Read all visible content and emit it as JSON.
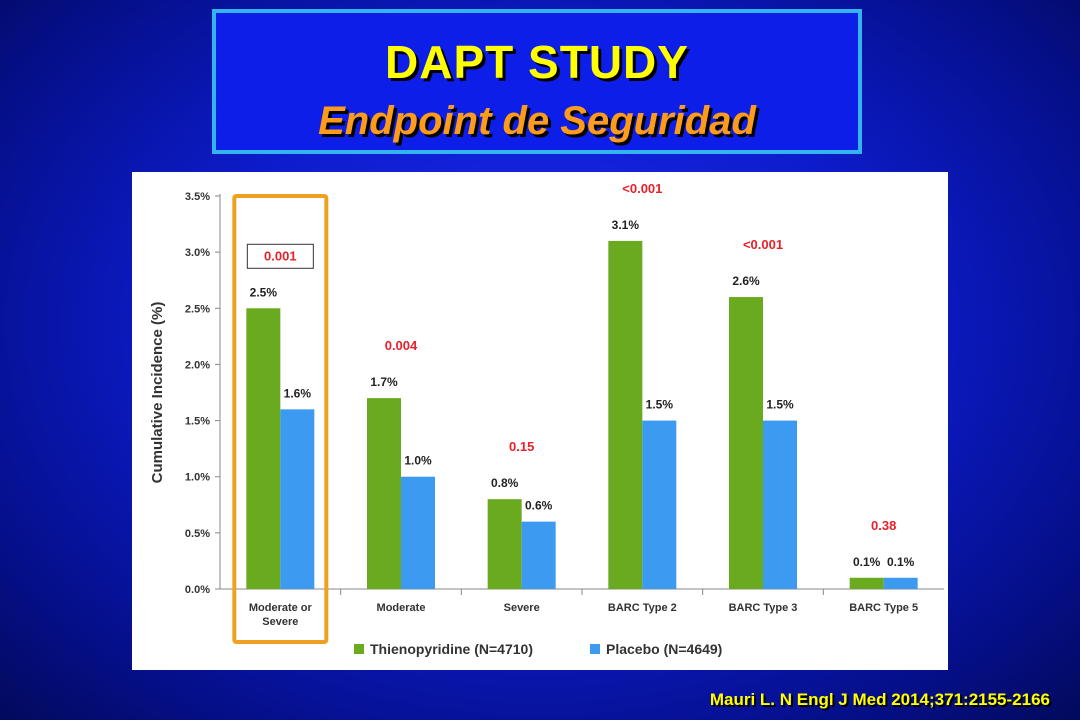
{
  "slide": {
    "title": "DAPT STUDY",
    "subtitle": "Endpoint de Seguridad",
    "citation": "Mauri L. N Engl J Med 2014;371:2155-2166"
  },
  "colors": {
    "thienopyridine": "#6aaa1e",
    "placebo": "#3c9bf0",
    "p_value": "#e8202a",
    "highlight_box": "#f0a020"
  },
  "chart_data": {
    "type": "bar",
    "ylabel": "Cumulative Incidence (%)",
    "ylim": [
      0,
      3.5
    ],
    "yticks": [
      "0.0%",
      "0.5%",
      "1.0%",
      "1.5%",
      "2.0%",
      "2.5%",
      "3.0%",
      "3.5%"
    ],
    "grid": false,
    "legend_position": "bottom",
    "categories": [
      [
        "Moderate or",
        "Severe"
      ],
      [
        "Moderate"
      ],
      [
        "Severe"
      ],
      [
        "BARC Type 2"
      ],
      [
        "BARC Type 3"
      ],
      [
        "BARC Type 5"
      ]
    ],
    "series": [
      {
        "name": "Thienopyridine (N=4710)",
        "values": [
          2.5,
          1.7,
          0.8,
          3.1,
          2.6,
          0.1
        ],
        "labels": [
          "2.5%",
          "1.7%",
          "0.8%",
          "3.1%",
          "2.6%",
          "0.1%"
        ]
      },
      {
        "name": "Placebo (N=4649)",
        "values": [
          1.6,
          1.0,
          0.6,
          1.5,
          1.5,
          0.1
        ],
        "labels": [
          "1.6%",
          "1.0%",
          "0.6%",
          "1.5%",
          "1.5%",
          "0.1%"
        ]
      }
    ],
    "p_values": [
      "0.001",
      "0.004",
      "0.15",
      "<0.001",
      "<0.001",
      "0.38"
    ],
    "highlighted_category": 0
  }
}
